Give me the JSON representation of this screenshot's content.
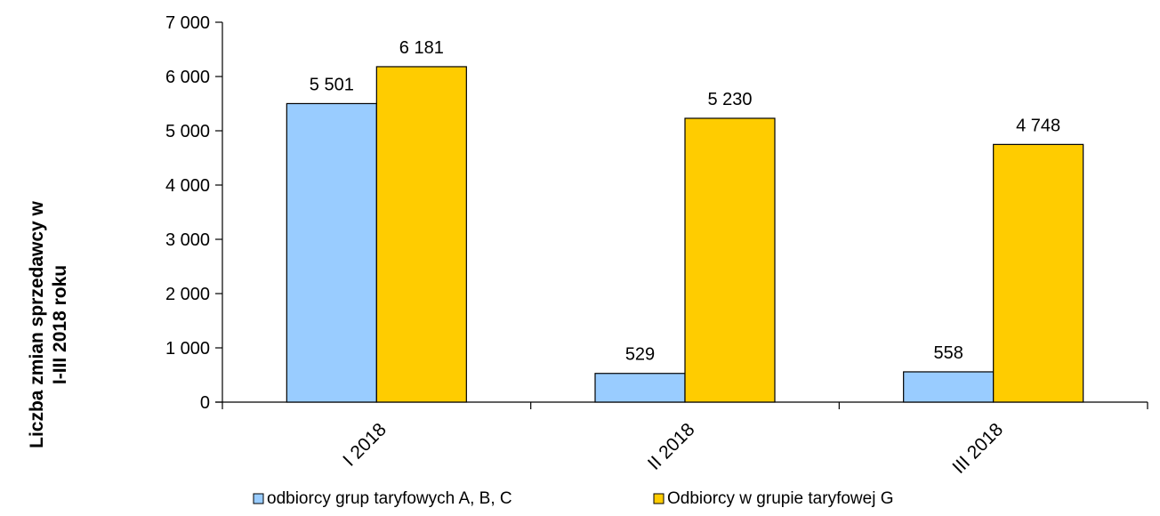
{
  "chart_data": {
    "type": "bar",
    "categories": [
      "I 2018",
      "II 2018",
      "III 2018"
    ],
    "series": [
      {
        "name": "odbiorcy grup taryfowych A, B, C",
        "values": [
          5501,
          529,
          558
        ],
        "labels": [
          "5 501",
          "529",
          "558"
        ],
        "color": "#99CCFF"
      },
      {
        "name": "Odbiorcy w grupie taryfowej G",
        "values": [
          6181,
          5230,
          4748
        ],
        "labels": [
          "6 181",
          "5 230",
          "4 748"
        ],
        "color": "#FFCC00"
      }
    ],
    "ylabel_lines": [
      "Liczba zmian sprzedawcy w",
      "I-III  2018 roku"
    ],
    "xlabel": "",
    "ylim": [
      0,
      7000
    ],
    "yticks": [
      0,
      1000,
      2000,
      3000,
      4000,
      5000,
      6000,
      7000
    ],
    "ytick_labels": [
      "0",
      "1 000",
      "2 000",
      "3 000",
      "4 000",
      "5 000",
      "6 000",
      "7 000"
    ],
    "grid": false,
    "legend": "bottom"
  }
}
